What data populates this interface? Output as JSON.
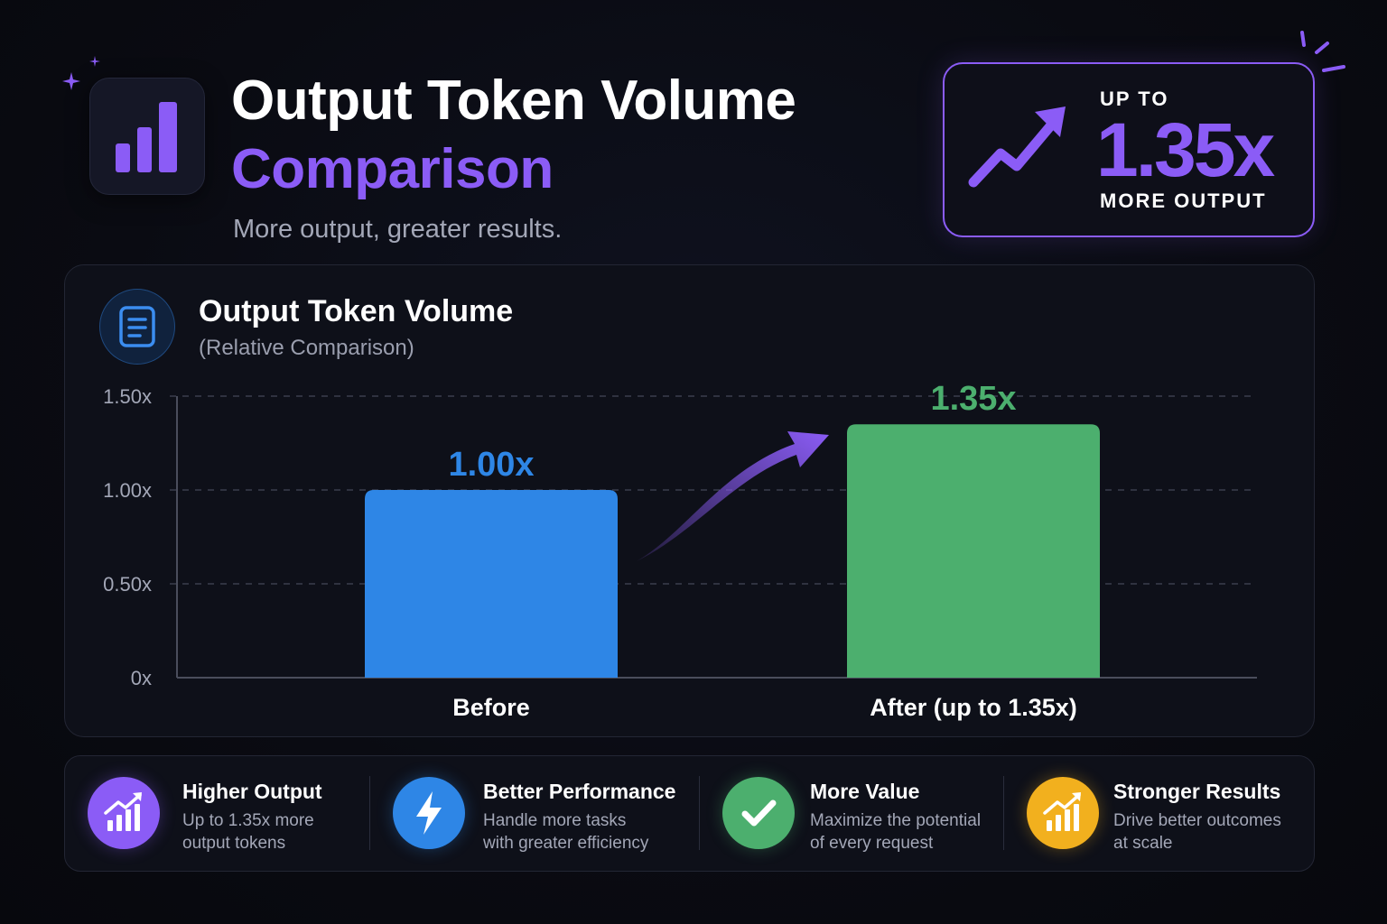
{
  "header": {
    "title_line1": "Output Token Volume",
    "title_line2": "Comparison",
    "subtitle": "More output, greater results.",
    "icon": "bar-chart-icon"
  },
  "callout": {
    "kicker": "UP TO",
    "value": "1.35x",
    "caption": "MORE OUTPUT",
    "icon": "trend-up-arrow-icon"
  },
  "chart_card": {
    "title": "Output Token Volume",
    "subtitle": "(Relative Comparison)",
    "icon": "document-icon"
  },
  "chart_data": {
    "type": "bar",
    "categories": [
      "Before",
      "After (up to 1.35x)"
    ],
    "values": [
      1.0,
      1.35
    ],
    "value_labels": [
      "1.00x",
      "1.35x"
    ],
    "colors": [
      "#2e86e6",
      "#4caf6e"
    ],
    "ylim": [
      0,
      1.5
    ],
    "yticks": [
      0,
      0.5,
      1.0,
      1.5
    ],
    "ytick_labels": [
      "0x",
      "0.50x",
      "1.00x",
      "1.50x"
    ],
    "grid": true
  },
  "features": [
    {
      "title": "Higher Output",
      "desc1": "Up to 1.35x more",
      "desc2": "output tokens",
      "color": "#8b5cf6",
      "icon": "growth-chart-icon"
    },
    {
      "title": "Better Performance",
      "desc1": "Handle more tasks",
      "desc2": "with greater efficiency",
      "color": "#2e86e6",
      "icon": "lightning-icon"
    },
    {
      "title": "More Value",
      "desc1": "Maximize the potential",
      "desc2": "of every request",
      "color": "#4caf6e",
      "icon": "checkmark-icon"
    },
    {
      "title": "Stronger Results",
      "desc1": "Drive better outcomes",
      "desc2": "at scale",
      "color": "#f2b01e",
      "icon": "growth-chart-icon"
    }
  ],
  "colors": {
    "accent": "#8b5cf6",
    "blue": "#2e86e6",
    "green": "#4caf6e",
    "amber": "#f2b01e"
  }
}
